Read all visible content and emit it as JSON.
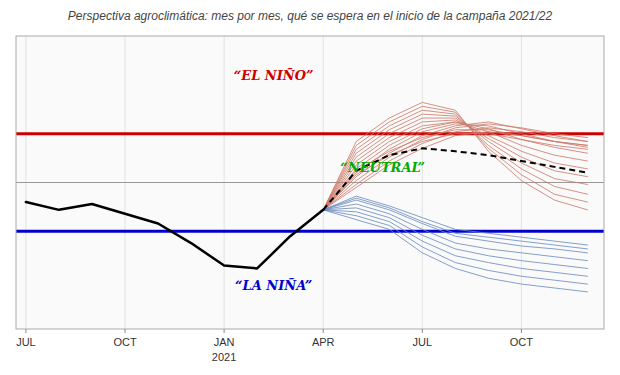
{
  "chart_data": {
    "type": "line",
    "title": "Perspectiva agroclimática: mes por mes, qué se espera en el inicio de la campaña 2021/22",
    "xlim": [
      -0.3,
      17.5
    ],
    "ylim": [
      -1.5,
      1.5
    ],
    "xticks": [
      {
        "value": 0,
        "label": "JUL"
      },
      {
        "value": 3,
        "label": "OCT"
      },
      {
        "value": 6,
        "label": "JAN"
      },
      {
        "value": 9,
        "label": "APR"
      },
      {
        "value": 12,
        "label": "JUL"
      },
      {
        "value": 15,
        "label": "OCT"
      }
    ],
    "grid": true,
    "tick_labels": "x",
    "hlines": [
      {
        "y": 0.5,
        "color": "#cc0000"
      },
      {
        "y": -0.5,
        "color": "#0000cc"
      },
      {
        "y": 0,
        "color": "#999999"
      }
    ],
    "series": [
      {
        "color": "#6688bb",
        "x": [
          9,
          10,
          11,
          12,
          13,
          14,
          15,
          16,
          17
        ],
        "values": [
          -0.28,
          -0.18,
          -0.28,
          -0.42,
          -0.55,
          -0.6,
          -0.65,
          -0.68,
          -0.72
        ]
      },
      {
        "color": "#6688bb",
        "x": [
          9,
          10,
          11,
          12,
          13,
          14,
          15,
          16,
          17
        ],
        "values": [
          -0.28,
          -0.22,
          -0.32,
          -0.48,
          -0.62,
          -0.68,
          -0.72,
          -0.76,
          -0.8
        ]
      },
      {
        "color": "#6688bb",
        "x": [
          9,
          10,
          11,
          12,
          13,
          14,
          15,
          16,
          17
        ],
        "values": [
          -0.28,
          -0.26,
          -0.36,
          -0.54,
          -0.68,
          -0.75,
          -0.8,
          -0.84,
          -0.88
        ]
      },
      {
        "color": "#6688bb",
        "x": [
          9,
          10,
          11,
          12,
          13,
          14,
          15,
          16,
          17
        ],
        "values": [
          -0.28,
          -0.3,
          -0.4,
          -0.6,
          -0.75,
          -0.82,
          -0.88,
          -0.92,
          -0.96
        ]
      },
      {
        "color": "#6688bb",
        "x": [
          9,
          10,
          11,
          12,
          13,
          14,
          15,
          16,
          17
        ],
        "values": [
          -0.28,
          -0.34,
          -0.44,
          -0.66,
          -0.82,
          -0.9,
          -0.96,
          -1.0,
          -1.04
        ]
      },
      {
        "color": "#6688bb",
        "x": [
          9,
          10,
          11,
          12,
          13,
          14,
          15,
          16,
          17
        ],
        "values": [
          -0.28,
          -0.38,
          -0.48,
          -0.72,
          -0.88,
          -0.98,
          -1.04,
          -1.08,
          -1.12
        ]
      },
      {
        "color": "#6688bb",
        "x": [
          9,
          10,
          11,
          12,
          13,
          14,
          15,
          16,
          17
        ],
        "values": [
          -0.28,
          -0.14,
          -0.24,
          -0.36,
          -0.48,
          -0.52,
          -0.56,
          -0.6,
          -0.64
        ]
      },
      {
        "color": "#6688bb",
        "x": [
          9,
          10,
          11,
          12,
          13,
          14,
          15,
          16,
          17
        ],
        "values": [
          -0.28,
          -0.16,
          -0.26,
          -0.4,
          -0.52,
          -0.56,
          -0.6,
          -0.64,
          -0.68
        ]
      },
      {
        "color": "#cc7766",
        "x": [
          9,
          10,
          11,
          12,
          13,
          14,
          15,
          16,
          17
        ],
        "values": [
          -0.28,
          -0.05,
          0.18,
          0.35,
          0.48,
          0.52,
          0.48,
          0.42,
          0.38
        ]
      },
      {
        "color": "#cc7766",
        "x": [
          9,
          10,
          11,
          12,
          13,
          14,
          15,
          16,
          17
        ],
        "values": [
          -0.28,
          -0.02,
          0.22,
          0.4,
          0.52,
          0.56,
          0.52,
          0.46,
          0.42
        ]
      },
      {
        "color": "#cc7766",
        "x": [
          9,
          10,
          11,
          12,
          13,
          14,
          15,
          16,
          17
        ],
        "values": [
          -0.28,
          0.02,
          0.26,
          0.44,
          0.56,
          0.6,
          0.56,
          0.5,
          0.46
        ]
      },
      {
        "color": "#cc7766",
        "x": [
          9,
          10,
          11,
          12,
          13,
          14,
          15,
          16,
          17
        ],
        "values": [
          -0.28,
          0.06,
          0.3,
          0.48,
          0.58,
          0.62,
          0.55,
          0.48,
          0.42
        ]
      },
      {
        "color": "#cc7766",
        "x": [
          9,
          10,
          11,
          12,
          13,
          14,
          15,
          16,
          17
        ],
        "values": [
          -0.28,
          0.1,
          0.34,
          0.52,
          0.6,
          0.58,
          0.5,
          0.42,
          0.36
        ]
      },
      {
        "color": "#cc7766",
        "x": [
          9,
          10,
          11,
          12,
          13,
          14,
          15,
          16,
          17
        ],
        "values": [
          -0.28,
          0.14,
          0.38,
          0.55,
          0.62,
          0.55,
          0.44,
          0.36,
          0.3
        ]
      },
      {
        "color": "#cc7766",
        "x": [
          9,
          10,
          11,
          12,
          13,
          14,
          15,
          16,
          17
        ],
        "values": [
          -0.28,
          0.18,
          0.42,
          0.58,
          0.62,
          0.52,
          0.38,
          0.28,
          0.22
        ]
      },
      {
        "color": "#cc7766",
        "x": [
          9,
          10,
          11,
          12,
          13,
          14,
          15,
          16,
          17
        ],
        "values": [
          -0.28,
          0.22,
          0.46,
          0.62,
          0.64,
          0.48,
          0.32,
          0.2,
          0.14
        ]
      },
      {
        "color": "#cc7766",
        "x": [
          9,
          10,
          11,
          12,
          13,
          14,
          15,
          16,
          17
        ],
        "values": [
          -0.28,
          0.26,
          0.5,
          0.66,
          0.66,
          0.45,
          0.26,
          0.12,
          0.06
        ]
      },
      {
        "color": "#cc7766",
        "x": [
          9,
          10,
          11,
          12,
          13,
          14,
          15,
          16,
          17
        ],
        "values": [
          -0.28,
          0.3,
          0.54,
          0.7,
          0.68,
          0.42,
          0.2,
          0.04,
          -0.02
        ]
      },
      {
        "color": "#cc7766",
        "x": [
          9,
          10,
          11,
          12,
          13,
          14,
          15,
          16,
          17
        ],
        "values": [
          -0.28,
          0.34,
          0.58,
          0.74,
          0.7,
          0.38,
          0.14,
          -0.04,
          -0.12
        ]
      },
      {
        "color": "#cc7766",
        "x": [
          9,
          10,
          11,
          12,
          13,
          14,
          15,
          16,
          17
        ],
        "values": [
          -0.28,
          0.38,
          0.62,
          0.78,
          0.72,
          0.35,
          0.08,
          -0.12,
          -0.2
        ]
      },
      {
        "color": "#cc7766",
        "x": [
          9,
          10,
          11,
          12,
          13,
          14,
          15,
          16,
          17
        ],
        "values": [
          -0.28,
          0.42,
          0.66,
          0.82,
          0.74,
          0.32,
          0.02,
          -0.18,
          -0.28
        ]
      },
      {
        "color": "#cc7766",
        "x": [
          9,
          10,
          11,
          12,
          13,
          14,
          15,
          16,
          17
        ],
        "values": [
          -0.28,
          0.08,
          0.28,
          0.42,
          0.5,
          0.5,
          0.44,
          0.38,
          0.34
        ]
      },
      {
        "color": "#cc7766",
        "x": [
          9,
          10,
          11,
          12,
          13,
          14,
          15,
          16,
          17
        ],
        "values": [
          -0.28,
          0.12,
          0.32,
          0.46,
          0.54,
          0.54,
          0.48,
          0.42,
          0.38
        ]
      },
      {
        "color": "#000000",
        "x": [
          0,
          1,
          2,
          3,
          4,
          5,
          6,
          7,
          8,
          9
        ],
        "values": [
          -0.2,
          -0.28,
          -0.22,
          -0.32,
          -0.42,
          -0.62,
          -0.85,
          -0.88,
          -0.55,
          -0.28
        ]
      },
      {
        "color": "#000000",
        "line_style": "dashed",
        "x": [
          9,
          10,
          11,
          12,
          13,
          14,
          15,
          16,
          17
        ],
        "values": [
          -0.28,
          0.12,
          0.28,
          0.35,
          0.32,
          0.28,
          0.22,
          0.16,
          0.1
        ]
      }
    ],
    "annotations": [
      {
        "text": "“EL NIÑO”",
        "x": 7.5,
        "y": 1.1,
        "color": "#cc0000"
      },
      {
        "text": "“NEUTRAL”",
        "x": 10.8,
        "y": 0.15,
        "color": "#00aa00"
      },
      {
        "text": "“LA NIÑA”",
        "x": 7.5,
        "y": -1.05,
        "color": "#0000cc"
      },
      {
        "text": "2021",
        "x": 6
      }
    ]
  }
}
